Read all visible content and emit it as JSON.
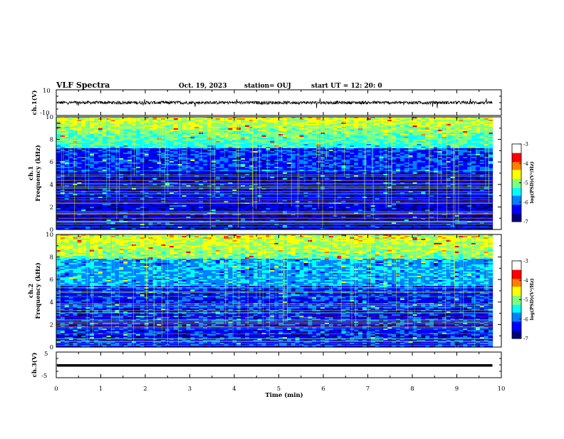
{
  "header": {
    "title": "VLF Spectra",
    "date": "Oct. 19, 2023",
    "station": "station= OUJ",
    "start": "start  UT =  12: 20: 0"
  },
  "colors": {
    "colormap": [
      "#00007f",
      "#0000ff",
      "#0080ff",
      "#00ffff",
      "#80ff80",
      "#ffff00",
      "#ff8000",
      "#ff0000",
      "#ffffff"
    ],
    "frame": "#000000"
  },
  "chart_data": [
    {
      "type": "line",
      "name": "ch1-waveform",
      "ylabel": "ch.1(V)",
      "ylim": [
        -10,
        10
      ],
      "yticks": [
        "10",
        "-10"
      ],
      "y_mean": 0,
      "y_noise_amplitude": 1.2,
      "xlim": [
        0,
        10
      ],
      "data_end_min": 9.8
    },
    {
      "type": "heatmap",
      "name": "ch1-spectrogram",
      "ylabel_top": "ch.1",
      "ylabel": "Frequency  (kHz)",
      "ylim": [
        0,
        10
      ],
      "yticks": [
        "0",
        "2",
        "4",
        "6",
        "8",
        "10"
      ],
      "xlim": [
        0,
        10
      ],
      "data_end_min": 9.8,
      "colorbar": {
        "label": "log(PSD)(V²/Hz)",
        "range": [
          -7,
          -3
        ],
        "ticks": [
          "-3",
          "-4",
          "-5",
          "-6",
          "-7"
        ]
      }
    },
    {
      "type": "heatmap",
      "name": "ch2-spectrogram",
      "ylabel_top": "ch.2",
      "ylabel": "Frequency  (kHz)",
      "ylim": [
        0,
        10
      ],
      "yticks": [
        "0",
        "2",
        "4",
        "6",
        "8",
        "10"
      ],
      "xlim": [
        0,
        10
      ],
      "data_end_min": 9.8,
      "colorbar": {
        "label": "log(PSD)(V²/Hz)",
        "range": [
          -7,
          -3
        ],
        "ticks": [
          "-3",
          "-4",
          "-5",
          "-6",
          "-7"
        ]
      }
    },
    {
      "type": "line",
      "name": "ch3-waveform",
      "ylabel": "ch.3(V)",
      "ylim": [
        -5,
        5
      ],
      "yticks": [
        "5",
        "-5"
      ],
      "y_mean": -0.2,
      "xlim": [
        0,
        10
      ],
      "data_end_min": 9.8
    }
  ],
  "xaxis": {
    "label": "Time  (min)",
    "ticks": [
      "0",
      "1",
      "2",
      "3",
      "4",
      "5",
      "6",
      "7",
      "8",
      "9",
      "10"
    ]
  }
}
